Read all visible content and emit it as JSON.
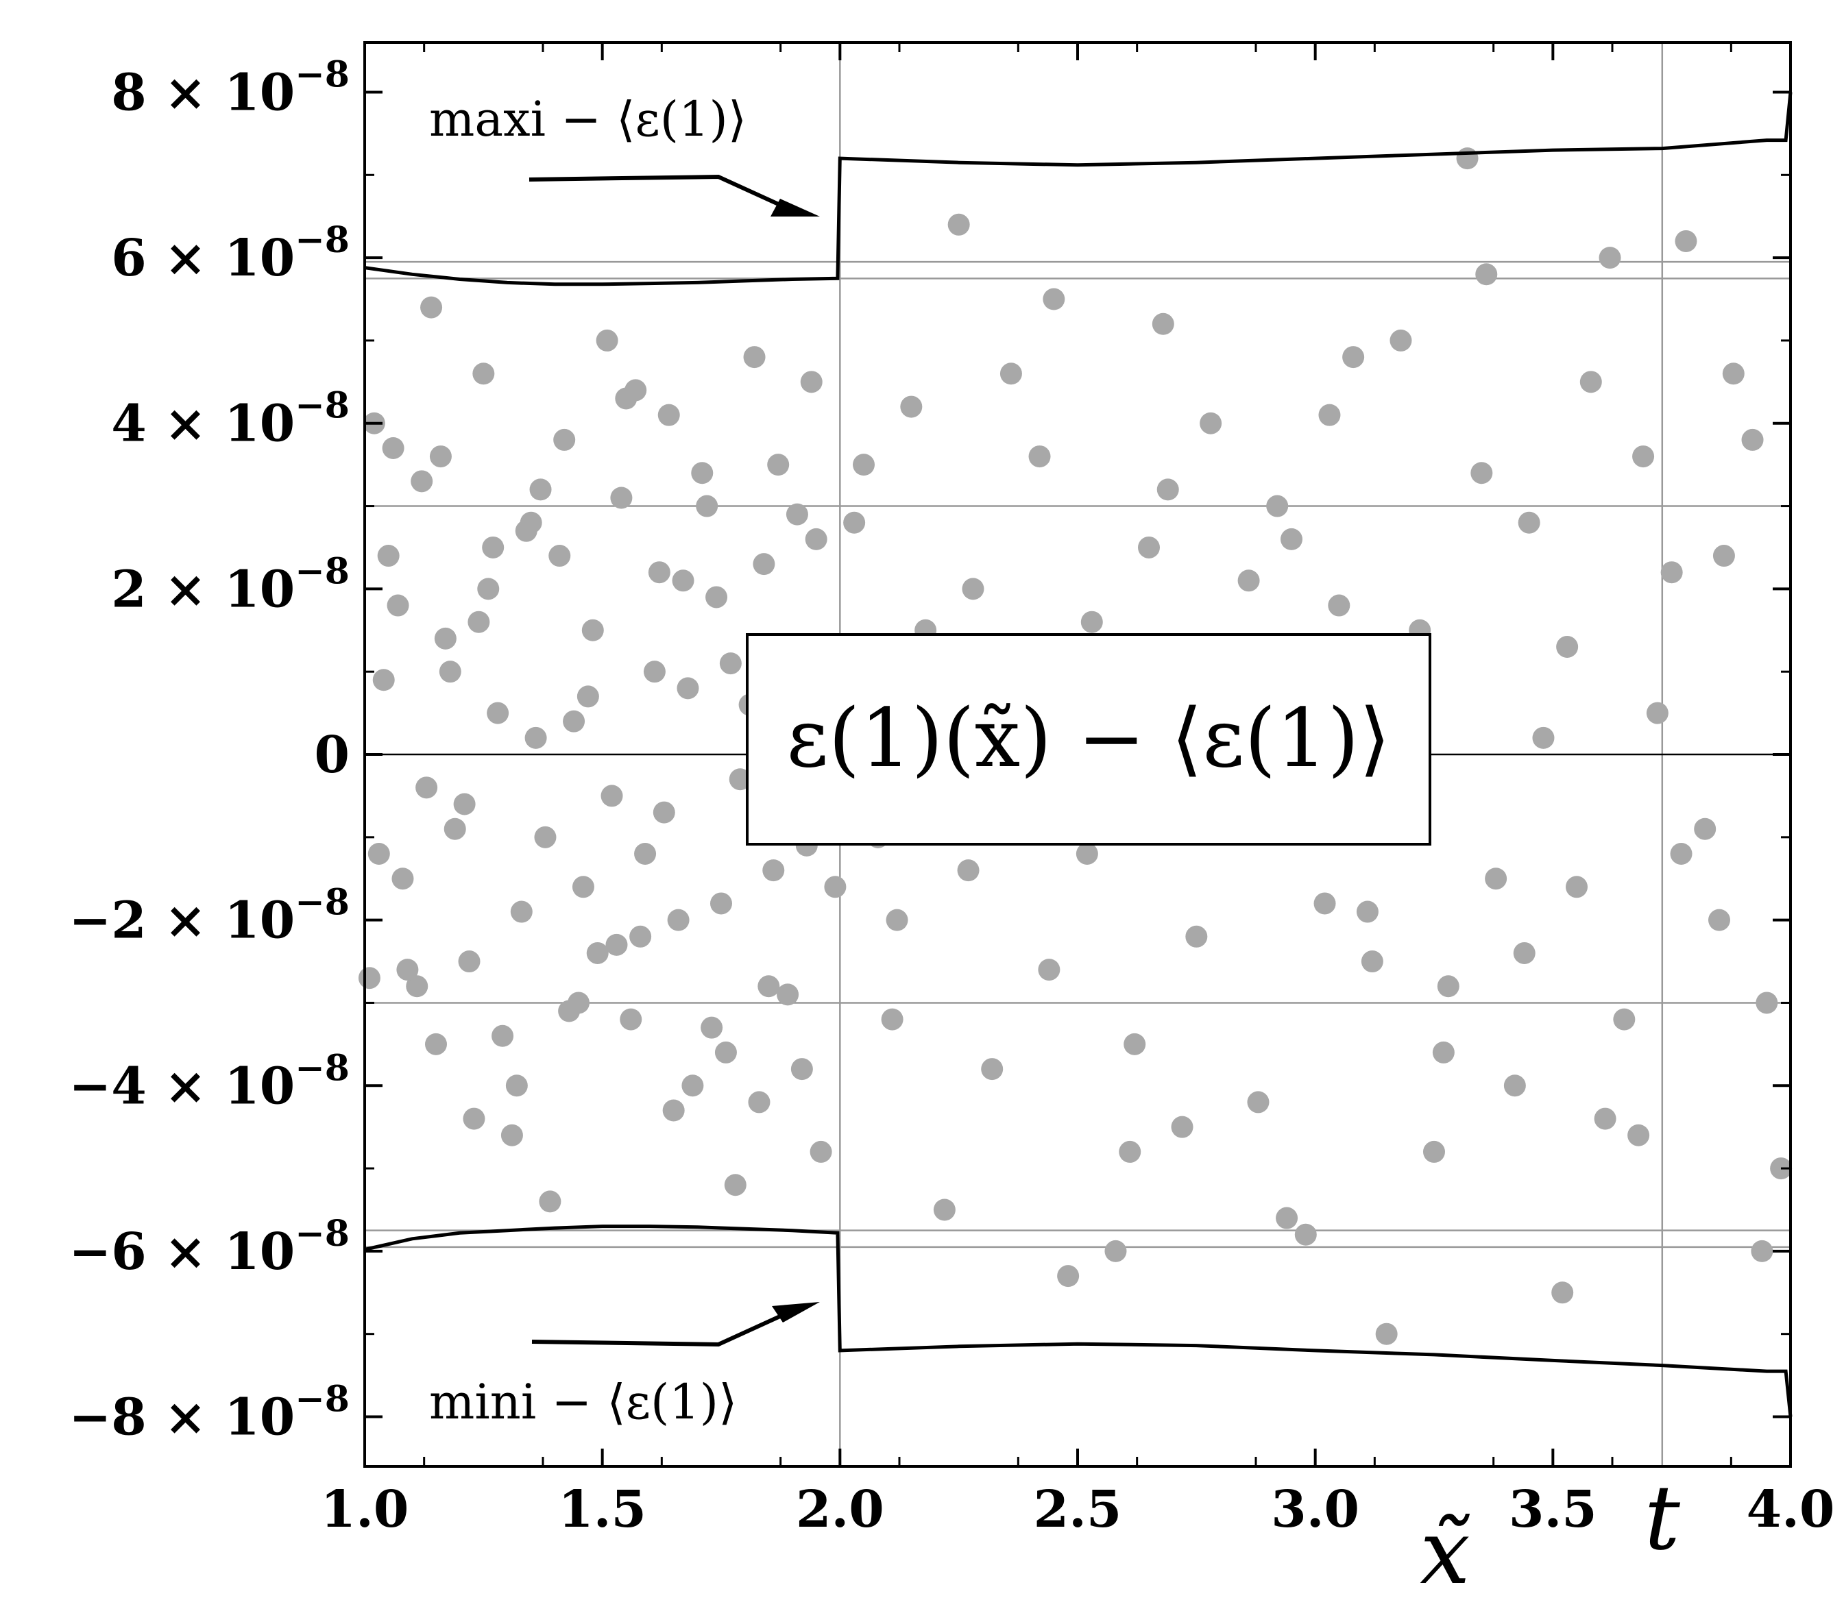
{
  "chart_data": {
    "type": "scatter",
    "title": "",
    "xlabel": "x̃",
    "ylabel": "",
    "xlim": [
      1.0,
      4.0
    ],
    "ylim": [
      -8.6e-08,
      8.6e-08
    ],
    "x_ticks": [
      {
        "value": 1.0,
        "label": "1.0"
      },
      {
        "value": 1.5,
        "label": "1.5"
      },
      {
        "value": 2.0,
        "label": "2.0"
      },
      {
        "value": 2.5,
        "label": "2.5"
      },
      {
        "value": 3.0,
        "label": "3.0"
      },
      {
        "value": 3.5,
        "label": "3.5"
      },
      {
        "value": 4.0,
        "label": "4.0"
      }
    ],
    "y_ticks": [
      {
        "value": 8e-08,
        "mant": "8 × 10",
        "exp": "−8"
      },
      {
        "value": 6e-08,
        "mant": "6 × 10",
        "exp": "−8"
      },
      {
        "value": 4e-08,
        "mant": "4 × 10",
        "exp": "−8"
      },
      {
        "value": 2e-08,
        "mant": "2 × 10",
        "exp": "−8"
      },
      {
        "value": 0,
        "mant": "0",
        "exp": ""
      },
      {
        "value": -2e-08,
        "mant": "−2 × 10",
        "exp": "−8"
      },
      {
        "value": -4e-08,
        "mant": "−4 × 10",
        "exp": "−8"
      },
      {
        "value": -6e-08,
        "mant": "−6 × 10",
        "exp": "−8"
      },
      {
        "value": -8e-08,
        "mant": "−8 × 10",
        "exp": "−8"
      }
    ],
    "grid": {
      "vertical": [
        2.0,
        3.73
      ],
      "horizontal": [
        5.95e-08,
        5.75e-08,
        3e-08,
        -3e-08,
        -5.75e-08,
        -5.95e-08
      ]
    },
    "center_label": "ε(1)(x̃) − ⟨ε(1)⟩",
    "t_marker": {
      "x": 3.73,
      "label": "t"
    },
    "annotations": [
      {
        "text": "maxi − ⟨ε(1)⟩",
        "position": "top-left"
      },
      {
        "text": "mini − ⟨ε(1)⟩",
        "position": "bottom-left"
      }
    ],
    "series": [
      {
        "name": "maxi − ⟨ε(1)⟩",
        "x": [
          1.0,
          1.1,
          1.2,
          1.3,
          1.4,
          1.5,
          1.6,
          1.7,
          1.8,
          1.9,
          1.995,
          2.0,
          2.25,
          2.5,
          2.75,
          3.0,
          3.25,
          3.5,
          3.73,
          3.95,
          3.99,
          4.0
        ],
        "y": [
          5.88e-08,
          5.8e-08,
          5.74e-08,
          5.7e-08,
          5.68e-08,
          5.68e-08,
          5.69e-08,
          5.7e-08,
          5.72e-08,
          5.74e-08,
          5.75e-08,
          7.2e-08,
          7.15e-08,
          7.12e-08,
          7.15e-08,
          7.2e-08,
          7.25e-08,
          7.3e-08,
          7.32e-08,
          7.42e-08,
          7.42e-08,
          8e-08
        ]
      },
      {
        "name": "mini − ⟨ε(1)⟩",
        "x": [
          1.0,
          1.1,
          1.2,
          1.3,
          1.4,
          1.5,
          1.6,
          1.7,
          1.8,
          1.9,
          1.995,
          2.0,
          2.25,
          2.5,
          2.75,
          3.0,
          3.25,
          3.5,
          3.73,
          3.95,
          3.99,
          4.0
        ],
        "y": [
          -5.98e-08,
          -5.85e-08,
          -5.78e-08,
          -5.75e-08,
          -5.72e-08,
          -5.7e-08,
          -5.7e-08,
          -5.71e-08,
          -5.73e-08,
          -5.75e-08,
          -5.78e-08,
          -7.2e-08,
          -7.15e-08,
          -7.12e-08,
          -7.14e-08,
          -7.2e-08,
          -7.25e-08,
          -7.32e-08,
          -7.38e-08,
          -7.45e-08,
          -7.45e-08,
          -8e-08
        ]
      },
      {
        "name": "",
        "x": [
          1.02,
          1.05,
          1.08,
          1.12,
          1.15,
          1.18,
          1.22,
          1.25,
          1.28,
          1.32,
          1.35,
          1.38,
          1.42,
          1.45,
          1.48,
          1.52,
          1.55,
          1.58,
          1.62,
          1.65,
          1.68,
          1.72,
          1.75,
          1.78,
          1.82,
          1.85,
          1.88,
          1.92,
          1.95,
          1.98,
          1.03,
          1.07,
          1.11,
          1.16,
          1.21,
          1.26,
          1.31,
          1.36,
          1.41,
          1.46,
          1.51,
          1.56,
          1.61,
          1.66,
          1.71,
          1.76,
          1.81,
          1.86,
          1.91,
          1.96,
          1.04,
          1.09,
          1.14,
          1.19,
          1.24,
          1.29,
          1.34,
          1.39,
          1.44,
          1.49,
          1.54,
          1.59,
          1.64,
          1.69,
          1.74,
          1.79,
          1.84,
          1.89,
          1.94,
          1.99,
          1.01,
          1.06,
          1.13,
          1.17,
          1.23,
          1.27,
          1.33,
          1.37,
          1.43,
          1.47,
          1.53,
          1.57,
          1.63,
          1.67,
          1.73,
          1.77,
          1.83,
          1.87,
          1.93,
          1.97,
          2.05,
          2.12,
          2.18,
          2.25,
          2.32,
          2.38,
          2.45,
          2.52,
          2.58,
          2.65,
          2.72,
          2.78,
          2.85,
          2.92,
          2.98,
          3.05,
          3.12,
          3.18,
          3.25,
          3.32,
          3.38,
          3.45,
          3.52,
          3.58,
          3.65,
          3.72,
          3.78,
          3.85,
          3.92,
          3.98,
          2.08,
          2.15,
          2.22,
          2.28,
          2.35,
          2.42,
          2.48,
          2.55,
          2.62,
          2.68,
          2.75,
          2.82,
          2.88,
          2.95,
          3.02,
          3.08,
          3.15,
          3.22,
          3.28,
          3.35,
          3.42,
          3.48,
          3.55,
          3.62,
          3.68,
          3.75,
          3.82,
          3.88,
          3.95,
          2.03,
          2.11,
          2.19,
          2.27,
          2.36,
          2.44,
          2.53,
          2.61,
          2.69,
          2.77,
          2.86,
          2.94,
          3.03,
          3.11,
          3.19,
          3.27,
          3.36,
          3.44,
          3.53,
          3.61,
          3.69,
          3.77,
          3.86,
          3.94
        ],
        "y": [
          4e-08,
          2.4e-08,
          -1.5e-08,
          3.3e-08,
          -3.5e-08,
          1e-08,
          -2.5e-08,
          4.6e-08,
          5e-09,
          -4e-08,
          2.8e-08,
          -1e-08,
          3.8e-08,
          -3e-08,
          1.5e-08,
          -5e-09,
          4.3e-08,
          -2.2e-08,
          2.2e-08,
          -4.3e-08,
          8e-09,
          3e-08,
          -1.8e-08,
          -5.2e-08,
          4.8e-08,
          -2.8e-08,
          1.2e-08,
          -3.8e-08,
          2.6e-08,
          -8e-09,
          -1.2e-08,
          1.8e-08,
          -2.8e-08,
          3.6e-08,
          -6e-09,
          2e-08,
          -4.6e-08,
          2e-09,
          2.4e-08,
          -1.6e-08,
          5e-08,
          -3.2e-08,
          1e-08,
          -2e-08,
          3.4e-08,
          -3.6e-08,
          6e-09,
          -1.4e-08,
          2.9e-08,
          -4.8e-08,
          9e-09,
          -2.6e-08,
          5.4e-08,
          -9e-09,
          1.6e-08,
          -3.4e-08,
          2.7e-08,
          -5.4e-08,
          4e-09,
          -2.4e-08,
          3.1e-08,
          -1.2e-08,
          4.1e-08,
          -4e-08,
          1.9e-08,
          -3e-09,
          2.3e-08,
          -2.9e-08,
          4.5e-08,
          -1.6e-08,
          -2.7e-08,
          3.7e-08,
          -4e-09,
          1.4e-08,
          -4.4e-08,
          2.5e-08,
          -1.9e-08,
          3.2e-08,
          -3.1e-08,
          7e-09,
          -2.3e-08,
          4.4e-08,
          -7e-09,
          2.1e-08,
          -3.3e-08,
          1.1e-08,
          -4.2e-08,
          3.5e-08,
          -1.1e-08,
          3e-09,
          3.5e-08,
          -2e-08,
          1.5e-08,
          6.4e-08,
          -3.8e-08,
          8e-09,
          5.5e-08,
          -1.2e-08,
          -6e-08,
          2.5e-08,
          -4.5e-08,
          4e-08,
          -5e-09,
          3e-08,
          -5.8e-08,
          1.8e-08,
          -2.5e-08,
          5e-08,
          -4.8e-08,
          7.2e-08,
          -1.5e-08,
          2.8e-08,
          -6.5e-08,
          4.5e-08,
          -3.2e-08,
          5e-09,
          6.2e-08,
          -2e-08,
          3.8e-08,
          -5e-08,
          -1e-08,
          4.2e-08,
          -5.5e-08,
          2e-08,
          -2e-09,
          3.6e-08,
          -6.3e-08,
          1.2e-08,
          -3.5e-08,
          5.2e-08,
          -2.2e-08,
          9e-09,
          -4.2e-08,
          2.6e-08,
          -1.8e-08,
          4.8e-08,
          -7e-08,
          1.5e-08,
          -2.8e-08,
          3.4e-08,
          -4e-08,
          2e-09,
          -1.6e-08,
          6e-08,
          -4.6e-08,
          2.2e-08,
          -9e-09,
          4.6e-08,
          -3e-08,
          2.8e-08,
          -3.2e-08,
          6e-09,
          -1.4e-08,
          4.6e-08,
          -2.6e-08,
          1.6e-08,
          -4.8e-08,
          3.2e-08,
          -8e-09,
          2.1e-08,
          -5.6e-08,
          4.1e-08,
          -1.9e-08,
          8e-09,
          -3.6e-08,
          5.8e-08,
          -2.4e-08,
          1.3e-08,
          -4.4e-08,
          3.6e-08,
          -1.2e-08,
          2.4e-08,
          -6e-08
        ]
      }
    ]
  }
}
